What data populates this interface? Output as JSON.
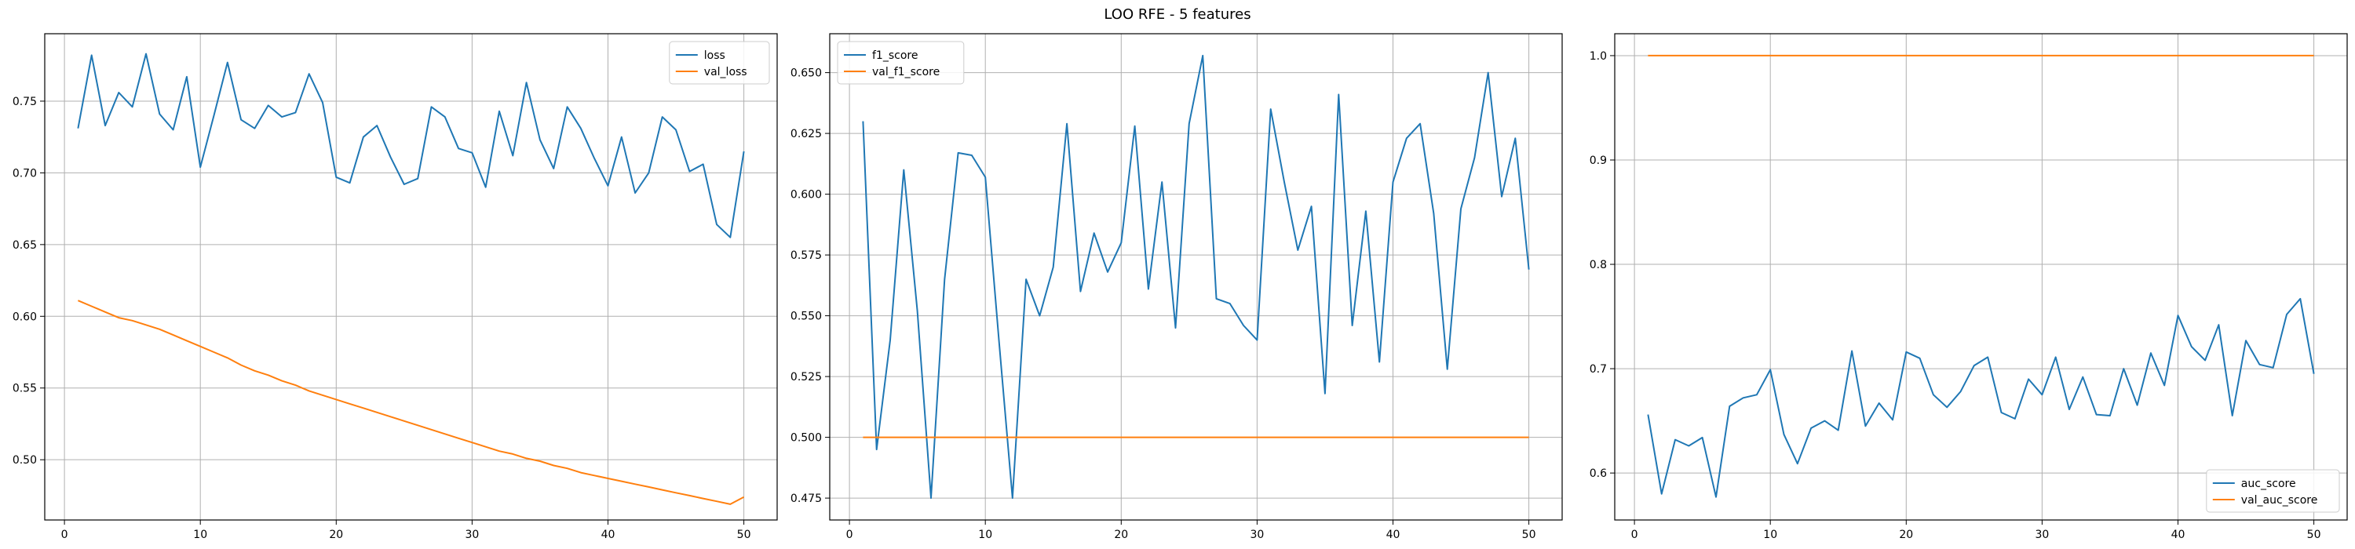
{
  "figure": {
    "suptitle": "LOO RFE - 5 features"
  },
  "colors": {
    "series1": "#1f77b4",
    "series2": "#ff7f0e",
    "grid": "#b0b0b0",
    "axis": "#000000"
  },
  "chart_data": [
    {
      "type": "line",
      "title": "",
      "xlabel": "",
      "ylabel": "",
      "xlim": [
        -1.45,
        52.45
      ],
      "ylim": [
        0.458,
        0.797
      ],
      "xticks": [
        0,
        10,
        20,
        30,
        40,
        50
      ],
      "yticks": [
        0.5,
        0.55,
        0.6,
        0.65,
        0.7,
        0.75
      ],
      "ytick_labels": [
        "0.50",
        "0.55",
        "0.60",
        "0.65",
        "0.70",
        "0.75"
      ],
      "grid": true,
      "legend": "upper right",
      "x": [
        1,
        2,
        3,
        4,
        5,
        6,
        7,
        8,
        9,
        10,
        11,
        12,
        13,
        14,
        15,
        16,
        17,
        18,
        19,
        20,
        21,
        22,
        23,
        24,
        25,
        26,
        27,
        28,
        29,
        30,
        31,
        32,
        33,
        34,
        35,
        36,
        37,
        38,
        39,
        40,
        41,
        42,
        43,
        44,
        45,
        46,
        47,
        48,
        49,
        50
      ],
      "series": [
        {
          "name": "loss",
          "values": [
            0.731,
            0.782,
            0.733,
            0.756,
            0.746,
            0.783,
            0.741,
            0.73,
            0.767,
            0.704,
            0.74,
            0.777,
            0.737,
            0.731,
            0.747,
            0.739,
            0.742,
            0.769,
            0.749,
            0.697,
            0.693,
            0.725,
            0.733,
            0.711,
            0.692,
            0.696,
            0.746,
            0.739,
            0.717,
            0.714,
            0.69,
            0.743,
            0.712,
            0.763,
            0.723,
            0.703,
            0.746,
            0.731,
            0.71,
            0.691,
            0.725,
            0.686,
            0.7,
            0.739,
            0.73,
            0.701,
            0.706,
            0.664,
            0.655,
            0.715
          ]
        },
        {
          "name": "val_loss",
          "values": [
            0.611,
            0.607,
            0.603,
            0.599,
            0.597,
            0.594,
            0.591,
            0.587,
            0.583,
            0.579,
            0.575,
            0.571,
            0.566,
            0.562,
            0.559,
            0.555,
            0.552,
            0.548,
            0.545,
            0.542,
            0.539,
            0.536,
            0.533,
            0.53,
            0.527,
            0.524,
            0.521,
            0.518,
            0.515,
            0.512,
            0.509,
            0.506,
            0.504,
            0.501,
            0.499,
            0.496,
            0.494,
            0.491,
            0.489,
            0.487,
            0.485,
            0.483,
            0.481,
            0.479,
            0.477,
            0.475,
            0.473,
            0.471,
            0.469,
            0.474
          ]
        }
      ]
    },
    {
      "type": "line",
      "title": "",
      "xlabel": "",
      "ylabel": "",
      "xlim": [
        -1.45,
        52.45
      ],
      "ylim": [
        0.466,
        0.666
      ],
      "xticks": [
        0,
        10,
        20,
        30,
        40,
        50
      ],
      "yticks": [
        0.475,
        0.5,
        0.525,
        0.55,
        0.575,
        0.6,
        0.625,
        0.65
      ],
      "ytick_labels": [
        "0.475",
        "0.500",
        "0.525",
        "0.550",
        "0.575",
        "0.600",
        "0.625",
        "0.650"
      ],
      "grid": true,
      "legend": "upper left",
      "x": [
        1,
        2,
        3,
        4,
        5,
        6,
        7,
        8,
        9,
        10,
        11,
        12,
        13,
        14,
        15,
        16,
        17,
        18,
        19,
        20,
        21,
        22,
        23,
        24,
        25,
        26,
        27,
        28,
        29,
        30,
        31,
        32,
        33,
        34,
        35,
        36,
        37,
        38,
        39,
        40,
        41,
        42,
        43,
        44,
        45,
        46,
        47,
        48,
        49,
        50
      ],
      "series": [
        {
          "name": "f1_score",
          "values": [
            0.63,
            0.495,
            0.54,
            0.61,
            0.552,
            0.475,
            0.565,
            0.617,
            0.616,
            0.607,
            0.54,
            0.475,
            0.565,
            0.55,
            0.57,
            0.629,
            0.56,
            0.584,
            0.568,
            0.58,
            0.628,
            0.561,
            0.605,
            0.545,
            0.629,
            0.657,
            0.557,
            0.555,
            0.546,
            0.54,
            0.635,
            0.605,
            0.577,
            0.595,
            0.518,
            0.641,
            0.546,
            0.593,
            0.531,
            0.605,
            0.623,
            0.629,
            0.592,
            0.528,
            0.594,
            0.615,
            0.65,
            0.599,
            0.623,
            0.569
          ]
        },
        {
          "name": "val_f1_score",
          "values": [
            0.5,
            0.5,
            0.5,
            0.5,
            0.5,
            0.5,
            0.5,
            0.5,
            0.5,
            0.5,
            0.5,
            0.5,
            0.5,
            0.5,
            0.5,
            0.5,
            0.5,
            0.5,
            0.5,
            0.5,
            0.5,
            0.5,
            0.5,
            0.5,
            0.5,
            0.5,
            0.5,
            0.5,
            0.5,
            0.5,
            0.5,
            0.5,
            0.5,
            0.5,
            0.5,
            0.5,
            0.5,
            0.5,
            0.5,
            0.5,
            0.5,
            0.5,
            0.5,
            0.5,
            0.5,
            0.5,
            0.5,
            0.5,
            0.5,
            0.5
          ]
        }
      ]
    },
    {
      "type": "line",
      "title": "",
      "xlabel": "",
      "ylabel": "",
      "xlim": [
        -1.45,
        52.45
      ],
      "ylim": [
        0.555,
        1.021
      ],
      "xticks": [
        0,
        10,
        20,
        30,
        40,
        50
      ],
      "yticks": [
        0.6,
        0.7,
        0.8,
        0.9,
        1.0
      ],
      "ytick_labels": [
        "0.6",
        "0.7",
        "0.8",
        "0.9",
        "1.0"
      ],
      "grid": true,
      "legend": "lower right",
      "x": [
        1,
        2,
        3,
        4,
        5,
        6,
        7,
        8,
        9,
        10,
        11,
        12,
        13,
        14,
        15,
        16,
        17,
        18,
        19,
        20,
        21,
        22,
        23,
        24,
        25,
        26,
        27,
        28,
        29,
        30,
        31,
        32,
        33,
        34,
        35,
        36,
        37,
        38,
        39,
        40,
        41,
        42,
        43,
        44,
        45,
        46,
        47,
        48,
        49,
        50
      ],
      "series": [
        {
          "name": "auc_score",
          "values": [
            0.656,
            0.58,
            0.632,
            0.626,
            0.634,
            0.577,
            0.664,
            0.672,
            0.675,
            0.699,
            0.637,
            0.609,
            0.643,
            0.65,
            0.641,
            0.717,
            0.645,
            0.667,
            0.651,
            0.716,
            0.71,
            0.675,
            0.663,
            0.678,
            0.703,
            0.711,
            0.658,
            0.652,
            0.69,
            0.675,
            0.711,
            0.661,
            0.692,
            0.656,
            0.655,
            0.7,
            0.665,
            0.715,
            0.684,
            0.751,
            0.721,
            0.708,
            0.742,
            0.655,
            0.727,
            0.704,
            0.701,
            0.752,
            0.767,
            0.695
          ]
        },
        {
          "name": "val_auc_score",
          "values": [
            1.0,
            1.0,
            1.0,
            1.0,
            1.0,
            1.0,
            1.0,
            1.0,
            1.0,
            1.0,
            1.0,
            1.0,
            1.0,
            1.0,
            1.0,
            1.0,
            1.0,
            1.0,
            1.0,
            1.0,
            1.0,
            1.0,
            1.0,
            1.0,
            1.0,
            1.0,
            1.0,
            1.0,
            1.0,
            1.0,
            1.0,
            1.0,
            1.0,
            1.0,
            1.0,
            1.0,
            1.0,
            1.0,
            1.0,
            1.0,
            1.0,
            1.0,
            1.0,
            1.0,
            1.0,
            1.0,
            1.0,
            1.0,
            1.0,
            1.0
          ]
        }
      ]
    }
  ]
}
